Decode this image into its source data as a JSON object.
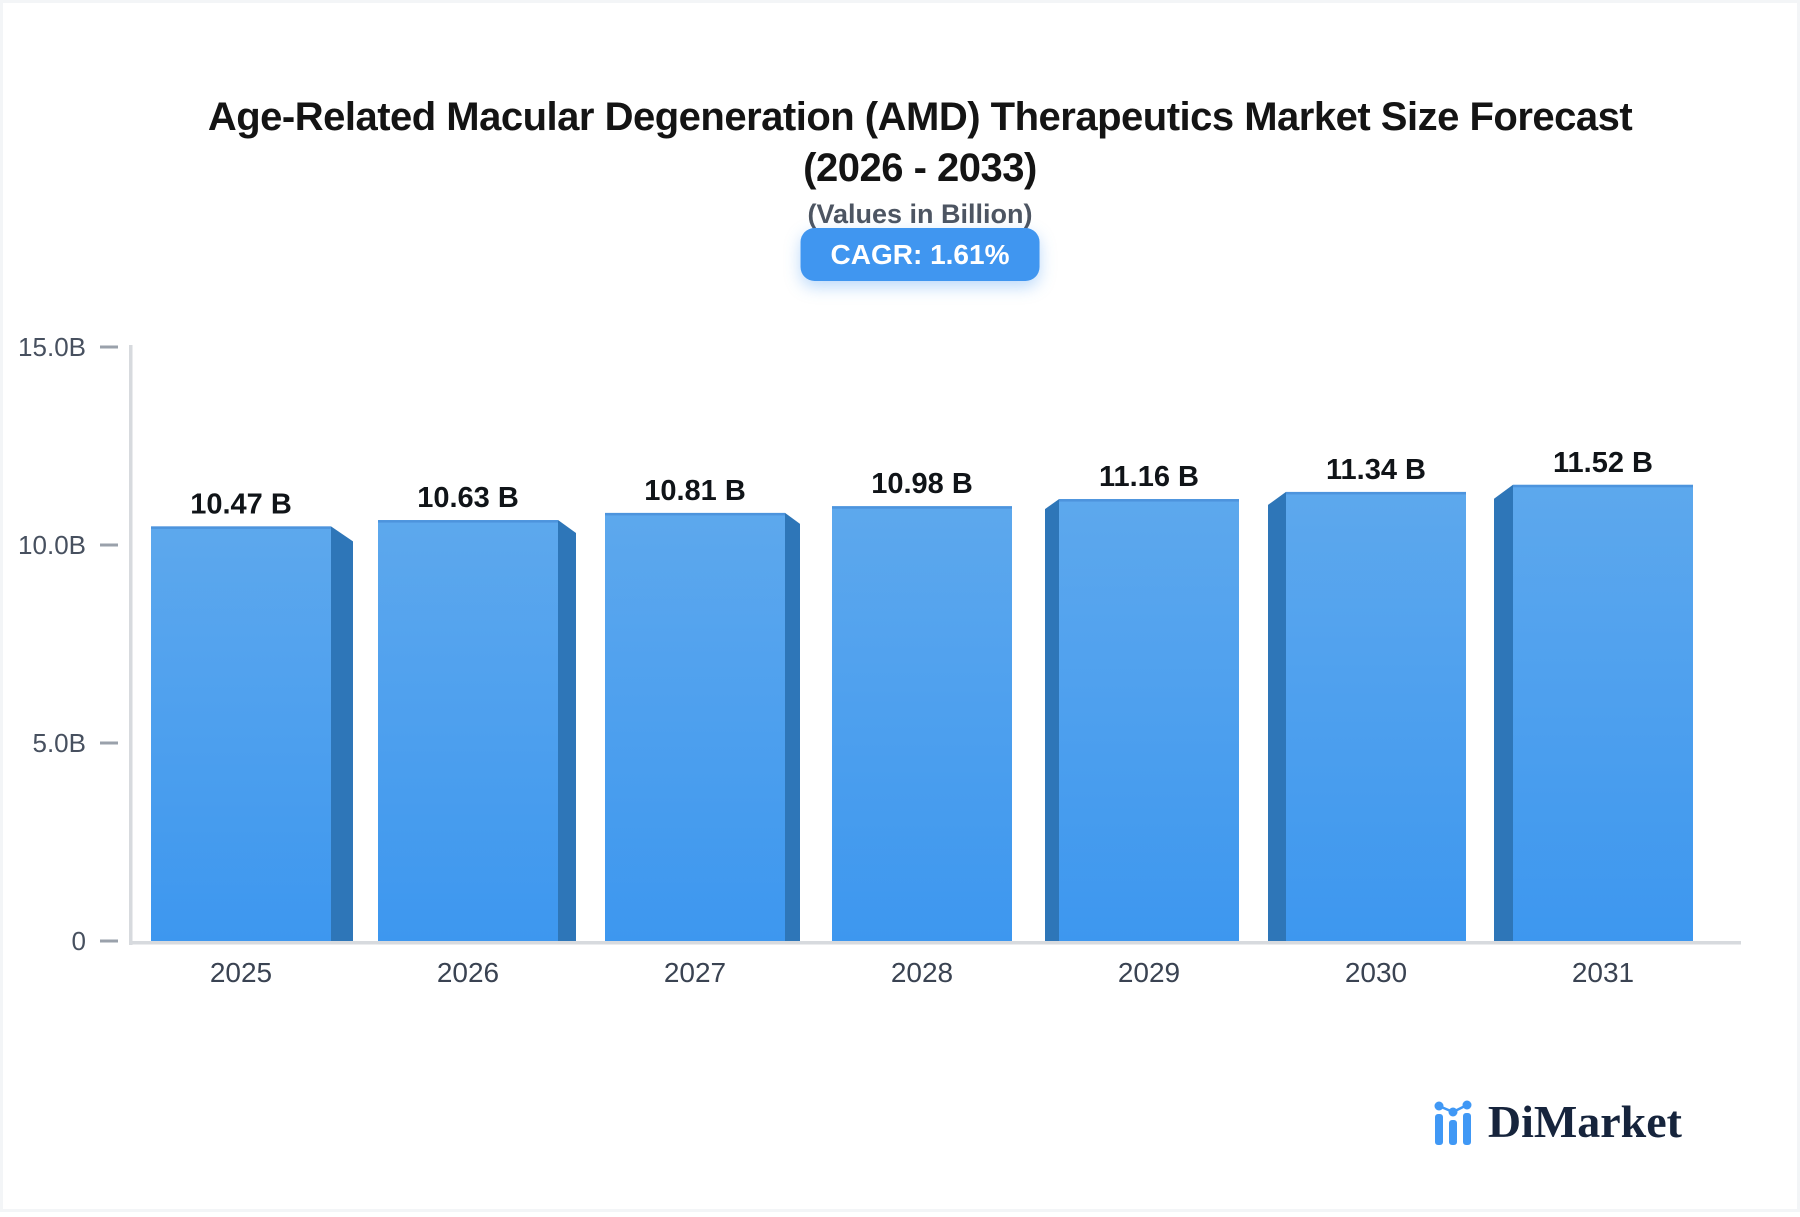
{
  "header": {
    "title_line1": "Age-Related Macular Degeneration (AMD) Therapeutics Market Size Forecast",
    "title_line2": "(2026 - 2033)",
    "subtitle": "(Values in Billion)",
    "cagr_badge": "CAGR: 1.61%"
  },
  "chart_data": {
    "type": "bar",
    "title": "Age-Related Macular Degeneration (AMD) Therapeutics Market Size Forecast (2026 - 2033)",
    "subtitle": "(Values in Billion)",
    "categories": [
      "2025",
      "2026",
      "2027",
      "2028",
      "2029",
      "2030",
      "2031"
    ],
    "values": [
      10.47,
      10.63,
      10.81,
      10.98,
      11.16,
      11.34,
      11.52
    ],
    "value_labels": [
      "10.47 B",
      "10.63 B",
      "10.81 B",
      "10.98 B",
      "11.16 B",
      "11.34 B",
      "11.52 B"
    ],
    "xlabel": "",
    "ylabel": "",
    "ylim": [
      0,
      15
    ],
    "yticks": [
      {
        "value": 15,
        "label": "15.0B"
      },
      {
        "value": 10,
        "label": "10.0B"
      },
      {
        "value": 5,
        "label": "5.0B"
      },
      {
        "value": 0,
        "label": "0"
      }
    ],
    "grid": false,
    "legend": false,
    "cagr_percent": "1.61%",
    "colors": {
      "bar_face_top": "#5da8ed",
      "bar_face_bottom": "#3d97ef",
      "bar_side": "#2e76b8",
      "bar_top_edge": "#4a90d9",
      "axis_line": "#d7dade",
      "tick_dash": "#9aa1ab",
      "y_label": "#47505f",
      "x_label": "#3a4352",
      "value_label": "#101418"
    }
  },
  "footer": {
    "brand": "DiMarket",
    "logo_icon": "mini-bar-chart-with-dots",
    "logo_blue": "#4098f5",
    "brand_navy": "#16243c"
  }
}
